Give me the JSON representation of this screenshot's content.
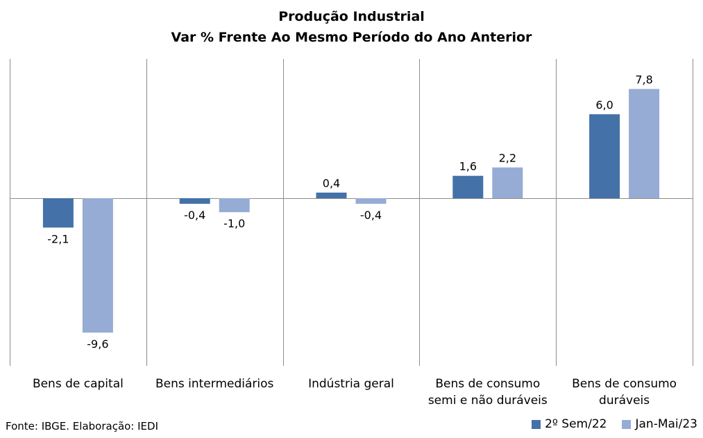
{
  "chart_data": {
    "type": "bar",
    "title": "Produção Industrial",
    "subtitle": "Var % Frente Ao Mesmo Período do Ano Anterior",
    "categories": [
      "Bens de capital",
      "Bens intermediários",
      "Indústria geral",
      "Bens de consumo semi e não duráveis",
      "Bens de consumo duráveis"
    ],
    "category_lines": [
      [
        "Bens de capital"
      ],
      [
        "Bens intermediários"
      ],
      [
        "Indústria geral"
      ],
      [
        "Bens de consumo",
        "semi e não duráveis"
      ],
      [
        "Bens de consumo",
        "duráveis"
      ]
    ],
    "series": [
      {
        "name": "2º Sem/22",
        "color": "#4472a8",
        "values": [
          -2.1,
          -0.4,
          0.4,
          1.6,
          6.0
        ],
        "labels": [
          "-2,1",
          "-0,4",
          "0,4",
          "1,6",
          "6,0"
        ]
      },
      {
        "name": "Jan-Mai/23",
        "color": "#96acd4",
        "values": [
          -9.6,
          -1.0,
          -0.4,
          2.2,
          7.8
        ],
        "labels": [
          "-9,6",
          "-1,0",
          "-0,4",
          "2,2",
          "7,8"
        ]
      }
    ],
    "ylim": [
      -12,
      10
    ],
    "grid": false,
    "category_separators": true,
    "legend": "bottom-right"
  },
  "source": "Fonte: IBGE. Elaboração: IEDI"
}
